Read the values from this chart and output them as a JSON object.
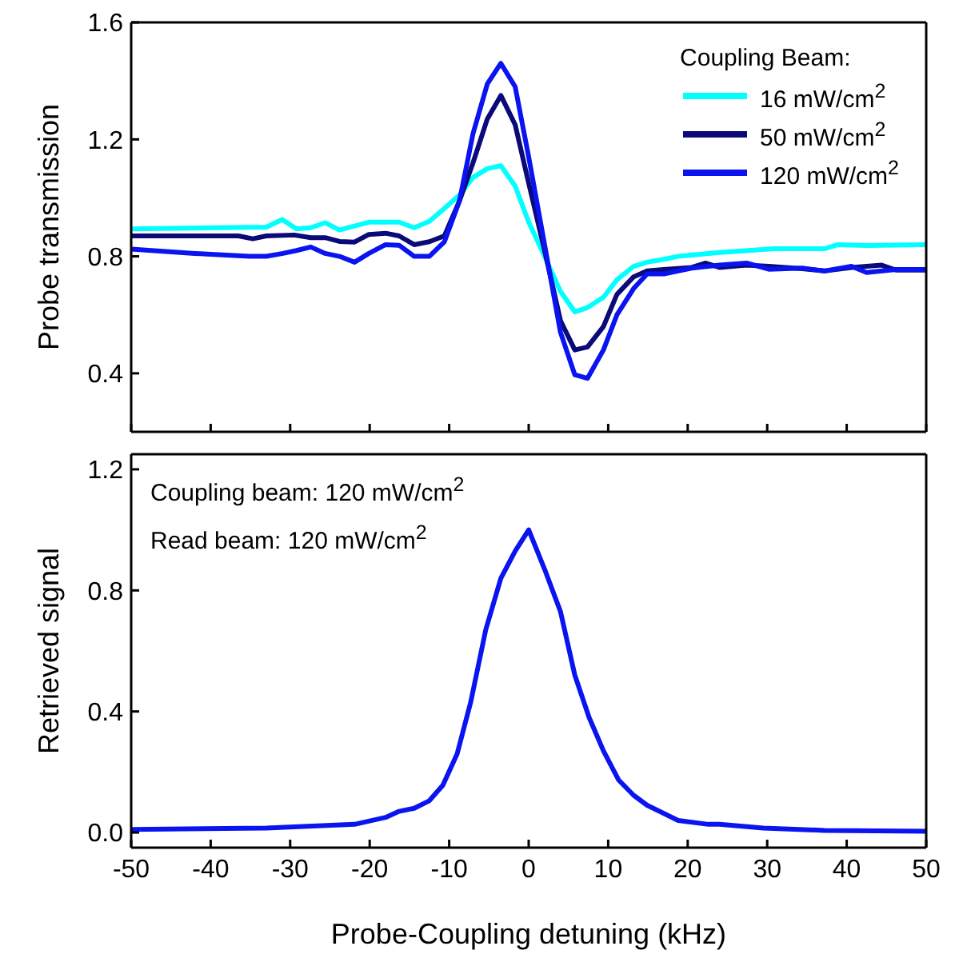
{
  "chart_data": [
    {
      "type": "line",
      "ylabel": "Probe transmission",
      "legend_title": "Coupling Beam:",
      "legend": "top right",
      "tick_labels": "y",
      "xlim": [
        -50,
        50
      ],
      "xticks": [
        -50,
        -40,
        -30,
        -20,
        -10,
        0,
        10,
        20,
        30,
        40,
        50
      ],
      "ylim": [
        0.2,
        1.6
      ],
      "yticks": [
        0.4,
        0.8,
        1.2,
        1.6
      ],
      "series": [
        {
          "name": "16 mW/cm$^{2}$",
          "color": "#00ffff",
          "x": [
            -50,
            -33,
            -31,
            -29.2,
            -27.4,
            -25.6,
            -23.8,
            -20.1,
            -16.3,
            -14.4,
            -12.5,
            -10.6,
            -8.7,
            -7,
            -5.2,
            -3.5,
            -1.7,
            0,
            2,
            4,
            5.8,
            7.4,
            9.4,
            11.1,
            13.2,
            14.9,
            17,
            18.8,
            24,
            30.9,
            37.2,
            38.9,
            42.5,
            50
          ],
          "values": [
            0.894,
            0.9,
            0.926,
            0.894,
            0.898,
            0.915,
            0.89,
            0.917,
            0.917,
            0.898,
            0.92,
            0.964,
            1.01,
            1.07,
            1.1,
            1.11,
            1.04,
            0.917,
            0.8,
            0.68,
            0.61,
            0.625,
            0.66,
            0.72,
            0.766,
            0.78,
            0.79,
            0.8,
            0.813,
            0.826,
            0.826,
            0.84,
            0.837,
            0.84
          ]
        },
        {
          "name": "50 mW/cm$^{2}$",
          "color": "#0a0a78",
          "x": [
            -50,
            -36.5,
            -34.7,
            -33,
            -29.5,
            -27.4,
            -25.6,
            -23.8,
            -21.9,
            -20.1,
            -18,
            -16.3,
            -14.4,
            -12.5,
            -10.6,
            -8.7,
            -7,
            -5.2,
            -3.5,
            -1.7,
            0,
            2,
            4,
            5.8,
            7.4,
            9.4,
            11.1,
            13.2,
            14.9,
            17,
            20.5,
            22.2,
            24,
            27.4,
            30.2,
            34.4,
            37.2,
            40.6,
            44.4,
            46.2,
            50
          ],
          "values": [
            0.87,
            0.87,
            0.86,
            0.87,
            0.873,
            0.864,
            0.864,
            0.851,
            0.849,
            0.875,
            0.879,
            0.87,
            0.84,
            0.85,
            0.87,
            0.99,
            1.12,
            1.27,
            1.35,
            1.25,
            1.05,
            0.82,
            0.58,
            0.48,
            0.49,
            0.56,
            0.67,
            0.73,
            0.75,
            0.755,
            0.762,
            0.777,
            0.762,
            0.77,
            0.766,
            0.758,
            0.75,
            0.762,
            0.77,
            0.753,
            0.753
          ]
        },
        {
          "name": "120 mW/cm$^{2}$",
          "color": "#0a14f0",
          "x": [
            -50,
            -42,
            -35.1,
            -33,
            -30.9,
            -29.2,
            -27.4,
            -25.6,
            -23.8,
            -21.9,
            -20.1,
            -18,
            -16.3,
            -14.4,
            -12.5,
            -10.6,
            -8.7,
            -7,
            -5.2,
            -3.5,
            -1.7,
            0,
            2,
            4,
            5.8,
            7.4,
            9.4,
            11.1,
            13.2,
            14.9,
            17,
            20.5,
            24,
            27.4,
            30.2,
            34.4,
            37.2,
            40.6,
            42.5,
            46.2,
            50
          ],
          "values": [
            0.825,
            0.81,
            0.8,
            0.8,
            0.81,
            0.82,
            0.832,
            0.81,
            0.8,
            0.78,
            0.81,
            0.84,
            0.838,
            0.8,
            0.8,
            0.85,
            0.99,
            1.22,
            1.39,
            1.46,
            1.38,
            1.14,
            0.84,
            0.54,
            0.395,
            0.383,
            0.48,
            0.6,
            0.69,
            0.74,
            0.74,
            0.76,
            0.77,
            0.777,
            0.756,
            0.76,
            0.75,
            0.766,
            0.745,
            0.755,
            0.755
          ]
        }
      ]
    },
    {
      "type": "line",
      "xlabel": "Probe-Coupling detuning (kHz)",
      "ylabel": "Retrieved signal",
      "legend": false,
      "annotations": [
        "Coupling beam: 120 mW/cm$^{2}$",
        "Read beam: 120 mW/cm$^{2}$"
      ],
      "xlim": [
        -50,
        50
      ],
      "xticks": [
        -50,
        -40,
        -30,
        -20,
        -10,
        0,
        10,
        20,
        30,
        40,
        50
      ],
      "ylim": [
        -0.05,
        1.25
      ],
      "yticks": [
        {
          "value": 0,
          "label": "0.0"
        },
        0.4,
        0.8,
        1.2
      ],
      "series": [
        {
          "color": "#0a14f0",
          "x": [
            -50,
            -33,
            -21.9,
            -18,
            -16.3,
            -14.4,
            -12.5,
            -10.8,
            -9,
            -7.3,
            -5.4,
            -3.5,
            -1.7,
            0,
            2,
            4,
            5.8,
            7.6,
            9.4,
            11.3,
            13.2,
            14.9,
            18.8,
            22.6,
            24,
            29.5,
            37.2,
            50
          ],
          "values": [
            0.01,
            0.015,
            0.027,
            0.05,
            0.07,
            0.08,
            0.105,
            0.156,
            0.26,
            0.43,
            0.67,
            0.84,
            0.93,
            1.0,
            0.87,
            0.73,
            0.52,
            0.38,
            0.27,
            0.174,
            0.123,
            0.09,
            0.04,
            0.027,
            0.027,
            0.015,
            0.007,
            0.004
          ]
        }
      ]
    }
  ]
}
